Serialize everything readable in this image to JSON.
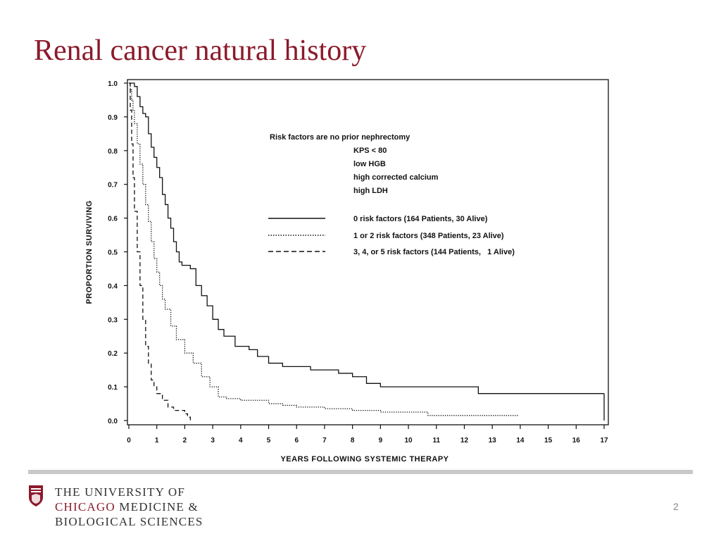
{
  "slide": {
    "title": "Renal cancer natural history",
    "page_number": "2"
  },
  "footer": {
    "org_line1": "THE UNIVERSITY OF",
    "org_line2a": "CHICAGO",
    "org_line2b": " MEDICINE &",
    "org_line3": "BIOLOGICAL SCIENCES",
    "accent_color": "#8b1a2b",
    "logo_icon": "university-shield-icon"
  },
  "chart_data": {
    "type": "line",
    "title": "",
    "xlabel": "YEARS FOLLOWING SYSTEMIC THERAPY",
    "ylabel": "PROPORTION SURVIVING",
    "xlim": [
      0,
      17
    ],
    "ylim": [
      0,
      1.0
    ],
    "x_ticks": [
      "0",
      "1",
      "2",
      "3",
      "4",
      "5",
      "6",
      "7",
      "8",
      "9",
      "10",
      "11",
      "12",
      "13",
      "14",
      "15",
      "16",
      "17"
    ],
    "y_ticks": [
      "0.0",
      "0.1",
      "0.2",
      "0.3",
      "0.4",
      "0.5",
      "0.6",
      "0.7",
      "0.8",
      "0.9",
      "1.0"
    ],
    "grid": false,
    "legend_position": "top-right",
    "legend_header": [
      "Risk factors are no prior nephrectomy",
      "KPS < 80",
      "low HGB",
      "high corrected calcium",
      "high LDH"
    ],
    "series": [
      {
        "name": "0 risk factors (164 Patients,  30 Alive)",
        "style": "solid",
        "x": [
          0,
          0.1,
          0.2,
          0.3,
          0.4,
          0.5,
          0.6,
          0.7,
          0.8,
          0.9,
          1.0,
          1.1,
          1.2,
          1.3,
          1.4,
          1.5,
          1.6,
          1.7,
          1.8,
          1.9,
          2.0,
          2.2,
          2.4,
          2.6,
          2.8,
          3.0,
          3.2,
          3.4,
          3.6,
          3.8,
          4.0,
          4.3,
          4.6,
          5.0,
          5.5,
          6.0,
          6.5,
          7.0,
          7.5,
          8.0,
          8.5,
          9.0,
          10.0,
          11.0,
          12.0,
          12.5,
          13.0,
          14.0,
          15.0,
          16.0,
          16.5,
          17.0
        ],
        "y": [
          1.0,
          1.0,
          0.99,
          0.96,
          0.93,
          0.91,
          0.9,
          0.85,
          0.81,
          0.78,
          0.75,
          0.72,
          0.67,
          0.64,
          0.6,
          0.57,
          0.53,
          0.5,
          0.47,
          0.46,
          0.46,
          0.45,
          0.4,
          0.37,
          0.34,
          0.3,
          0.27,
          0.25,
          0.25,
          0.22,
          0.22,
          0.21,
          0.19,
          0.17,
          0.16,
          0.16,
          0.15,
          0.15,
          0.14,
          0.13,
          0.11,
          0.1,
          0.1,
          0.1,
          0.1,
          0.08,
          0.08,
          0.08,
          0.08,
          0.08,
          0.08,
          0.08
        ]
      },
      {
        "name": "1 or 2 risk factors (348 Patients,  23 Alive)",
        "style": "dotted",
        "x": [
          0,
          0.05,
          0.1,
          0.15,
          0.2,
          0.3,
          0.4,
          0.5,
          0.6,
          0.7,
          0.8,
          0.9,
          1.0,
          1.1,
          1.2,
          1.3,
          1.5,
          1.7,
          2.0,
          2.3,
          2.6,
          2.9,
          3.2,
          3.5,
          4.0,
          4.5,
          5.0,
          5.5,
          6.0,
          7.0,
          8.0,
          9.0,
          10.0,
          10.7,
          11.0,
          12.0,
          13.0,
          13.5,
          13.9
        ],
        "y": [
          1.0,
          0.98,
          0.95,
          0.92,
          0.88,
          0.82,
          0.76,
          0.7,
          0.64,
          0.59,
          0.53,
          0.48,
          0.44,
          0.4,
          0.36,
          0.33,
          0.28,
          0.24,
          0.2,
          0.17,
          0.13,
          0.1,
          0.07,
          0.065,
          0.06,
          0.06,
          0.05,
          0.045,
          0.04,
          0.035,
          0.03,
          0.025,
          0.025,
          0.015,
          0.015,
          0.015,
          0.015,
          0.015,
          0.02
        ]
      },
      {
        "name": "3, 4, or 5 risk factors (144 Patients,   1 Alive)",
        "style": "dashed",
        "x": [
          0,
          0.05,
          0.1,
          0.15,
          0.2,
          0.3,
          0.4,
          0.5,
          0.6,
          0.7,
          0.8,
          0.9,
          1.0,
          1.2,
          1.4,
          1.6,
          1.8,
          2.0,
          2.1,
          2.2
        ],
        "y": [
          1.0,
          0.92,
          0.82,
          0.72,
          0.62,
          0.5,
          0.4,
          0.3,
          0.22,
          0.17,
          0.12,
          0.1,
          0.08,
          0.06,
          0.04,
          0.03,
          0.03,
          0.02,
          0.01,
          0.0
        ]
      }
    ]
  }
}
